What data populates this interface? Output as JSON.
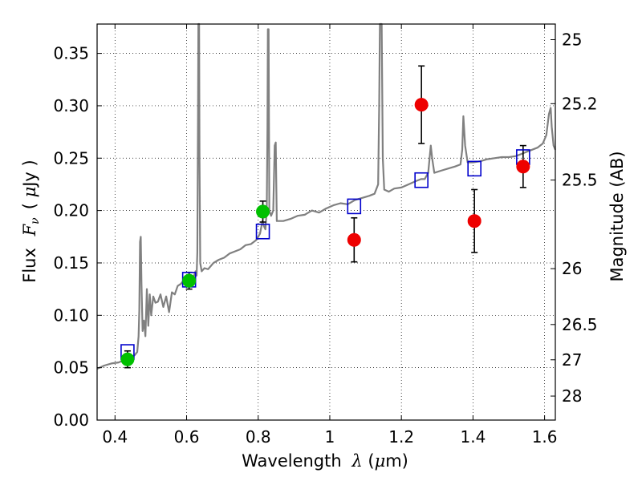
{
  "chart_data": {
    "type": "scatter",
    "xlabel_prefix": "Wavelength",
    "xlabel_math": "λ",
    "xlabel_unit_open": " (",
    "xlabel_unit_mu": "μ",
    "xlabel_unit_rest": "m)",
    "ylabel_prefix": "Flux",
    "ylabel_math": "F",
    "ylabel_math_sub": "ν",
    "ylabel_unit_open": "( ",
    "ylabel_unit_mu": "μ",
    "ylabel_unit_rest": "Jy )",
    "y2label": "Magnitude (AB)",
    "xlim": [
      0.35,
      1.63
    ],
    "ylim": [
      0.0,
      0.378
    ],
    "grid": true,
    "x_ticks": [
      {
        "value": 0.4,
        "label": "0.4"
      },
      {
        "value": 0.6,
        "label": "0.6"
      },
      {
        "value": 0.8,
        "label": "0.8"
      },
      {
        "value": 1.0,
        "label": "1"
      },
      {
        "value": 1.2,
        "label": "1.2"
      },
      {
        "value": 1.4,
        "label": "1.4"
      },
      {
        "value": 1.6,
        "label": "1.6"
      }
    ],
    "y_ticks": [
      {
        "value": 0.0,
        "label": "0.00"
      },
      {
        "value": 0.05,
        "label": "0.05"
      },
      {
        "value": 0.1,
        "label": "0.10"
      },
      {
        "value": 0.15,
        "label": "0.15"
      },
      {
        "value": 0.2,
        "label": "0.20"
      },
      {
        "value": 0.25,
        "label": "0.25"
      },
      {
        "value": 0.3,
        "label": "0.30"
      },
      {
        "value": 0.35,
        "label": "0.35"
      }
    ],
    "y2_ticks": [
      {
        "value": 25,
        "label": "25"
      },
      {
        "value": 25.2,
        "label": "25.2"
      },
      {
        "value": 25.5,
        "label": "25.5"
      },
      {
        "value": 26,
        "label": "26"
      },
      {
        "value": 26.5,
        "label": "26.5"
      },
      {
        "value": 27,
        "label": "27"
      },
      {
        "value": 28,
        "label": "28"
      }
    ],
    "sed_model": {
      "color": "#808080",
      "points": [
        [
          0.35,
          0.049
        ],
        [
          0.37,
          0.052
        ],
        [
          0.39,
          0.054
        ],
        [
          0.41,
          0.055
        ],
        [
          0.43,
          0.058
        ],
        [
          0.445,
          0.06
        ],
        [
          0.455,
          0.062
        ],
        [
          0.462,
          0.065
        ],
        [
          0.466,
          0.08
        ],
        [
          0.468,
          0.105
        ],
        [
          0.47,
          0.17
        ],
        [
          0.472,
          0.175
        ],
        [
          0.474,
          0.13
        ],
        [
          0.477,
          0.085
        ],
        [
          0.481,
          0.095
        ],
        [
          0.485,
          0.08
        ],
        [
          0.489,
          0.125
        ],
        [
          0.493,
          0.09
        ],
        [
          0.497,
          0.12
        ],
        [
          0.501,
          0.1
        ],
        [
          0.507,
          0.118
        ],
        [
          0.513,
          0.112
        ],
        [
          0.52,
          0.113
        ],
        [
          0.527,
          0.12
        ],
        [
          0.535,
          0.108
        ],
        [
          0.543,
          0.118
        ],
        [
          0.551,
          0.103
        ],
        [
          0.559,
          0.122
        ],
        [
          0.567,
          0.12
        ],
        [
          0.575,
          0.128
        ],
        [
          0.584,
          0.13
        ],
        [
          0.593,
          0.134
        ],
        [
          0.602,
          0.135
        ],
        [
          0.612,
          0.136
        ],
        [
          0.62,
          0.137
        ],
        [
          0.625,
          0.142
        ],
        [
          0.628,
          0.138
        ],
        [
          0.63,
          0.16
        ],
        [
          0.632,
          0.3
        ],
        [
          0.633,
          0.378
        ],
        [
          0.635,
          0.378
        ],
        [
          0.636,
          0.25
        ],
        [
          0.638,
          0.15
        ],
        [
          0.642,
          0.142
        ],
        [
          0.65,
          0.145
        ],
        [
          0.66,
          0.144
        ],
        [
          0.675,
          0.15
        ],
        [
          0.69,
          0.153
        ],
        [
          0.705,
          0.155
        ],
        [
          0.72,
          0.159
        ],
        [
          0.735,
          0.161
        ],
        [
          0.75,
          0.163
        ],
        [
          0.765,
          0.167
        ],
        [
          0.78,
          0.168
        ],
        [
          0.795,
          0.172
        ],
        [
          0.805,
          0.178
        ],
        [
          0.812,
          0.19
        ],
        [
          0.816,
          0.185
        ],
        [
          0.82,
          0.182
        ],
        [
          0.824,
          0.2
        ],
        [
          0.826,
          0.28
        ],
        [
          0.827,
          0.373
        ],
        [
          0.829,
          0.373
        ],
        [
          0.831,
          0.2
        ],
        [
          0.836,
          0.195
        ],
        [
          0.842,
          0.2
        ],
        [
          0.846,
          0.262
        ],
        [
          0.849,
          0.265
        ],
        [
          0.852,
          0.19
        ],
        [
          0.87,
          0.19
        ],
        [
          0.89,
          0.192
        ],
        [
          0.91,
          0.195
        ],
        [
          0.93,
          0.196
        ],
        [
          0.95,
          0.2
        ],
        [
          0.97,
          0.198
        ],
        [
          0.99,
          0.202
        ],
        [
          1.01,
          0.205
        ],
        [
          1.03,
          0.207
        ],
        [
          1.05,
          0.206
        ],
        [
          1.07,
          0.21
        ],
        [
          1.09,
          0.212
        ],
        [
          1.11,
          0.214
        ],
        [
          1.125,
          0.216
        ],
        [
          1.135,
          0.225
        ],
        [
          1.138,
          0.3
        ],
        [
          1.14,
          0.378
        ],
        [
          1.145,
          0.378
        ],
        [
          1.148,
          0.25
        ],
        [
          1.152,
          0.22
        ],
        [
          1.165,
          0.218
        ],
        [
          1.18,
          0.221
        ],
        [
          1.2,
          0.222
        ],
        [
          1.22,
          0.225
        ],
        [
          1.24,
          0.228
        ],
        [
          1.255,
          0.23
        ],
        [
          1.265,
          0.23
        ],
        [
          1.275,
          0.236
        ],
        [
          1.282,
          0.262
        ],
        [
          1.286,
          0.25
        ],
        [
          1.292,
          0.236
        ],
        [
          1.31,
          0.238
        ],
        [
          1.33,
          0.24
        ],
        [
          1.35,
          0.242
        ],
        [
          1.365,
          0.244
        ],
        [
          1.37,
          0.258
        ],
        [
          1.373,
          0.29
        ],
        [
          1.378,
          0.262
        ],
        [
          1.385,
          0.246
        ],
        [
          1.4,
          0.246
        ],
        [
          1.42,
          0.247
        ],
        [
          1.44,
          0.249
        ],
        [
          1.46,
          0.25
        ],
        [
          1.48,
          0.251
        ],
        [
          1.5,
          0.251
        ],
        [
          1.52,
          0.252
        ],
        [
          1.535,
          0.254
        ],
        [
          1.55,
          0.256
        ],
        [
          1.565,
          0.258
        ],
        [
          1.58,
          0.26
        ],
        [
          1.595,
          0.264
        ],
        [
          1.605,
          0.272
        ],
        [
          1.612,
          0.292
        ],
        [
          1.617,
          0.298
        ],
        [
          1.62,
          0.28
        ],
        [
          1.625,
          0.262
        ],
        [
          1.63,
          0.258
        ]
      ]
    },
    "series": [
      {
        "marker": "square",
        "color": "#0000cc",
        "points": [
          {
            "x": 0.435,
            "y": 0.065
          },
          {
            "x": 0.607,
            "y": 0.134
          },
          {
            "x": 0.813,
            "y": 0.18
          },
          {
            "x": 1.068,
            "y": 0.204
          },
          {
            "x": 1.256,
            "y": 0.229
          },
          {
            "x": 1.404,
            "y": 0.24
          },
          {
            "x": 1.54,
            "y": 0.251
          }
        ]
      },
      {
        "marker": "circle",
        "color": "#00c000",
        "points": [
          {
            "x": 0.435,
            "y": 0.058,
            "err": 0.008
          },
          {
            "x": 0.607,
            "y": 0.133,
            "err": 0.008
          },
          {
            "x": 0.813,
            "y": 0.199,
            "err": 0.01
          }
        ]
      },
      {
        "marker": "circle",
        "color": "#ee0000",
        "points": [
          {
            "x": 1.068,
            "y": 0.172,
            "err": 0.021
          },
          {
            "x": 1.256,
            "y": 0.301,
            "err": 0.037
          },
          {
            "x": 1.404,
            "y": 0.19,
            "err": 0.03
          },
          {
            "x": 1.54,
            "y": 0.242,
            "err": 0.02
          }
        ]
      }
    ]
  }
}
